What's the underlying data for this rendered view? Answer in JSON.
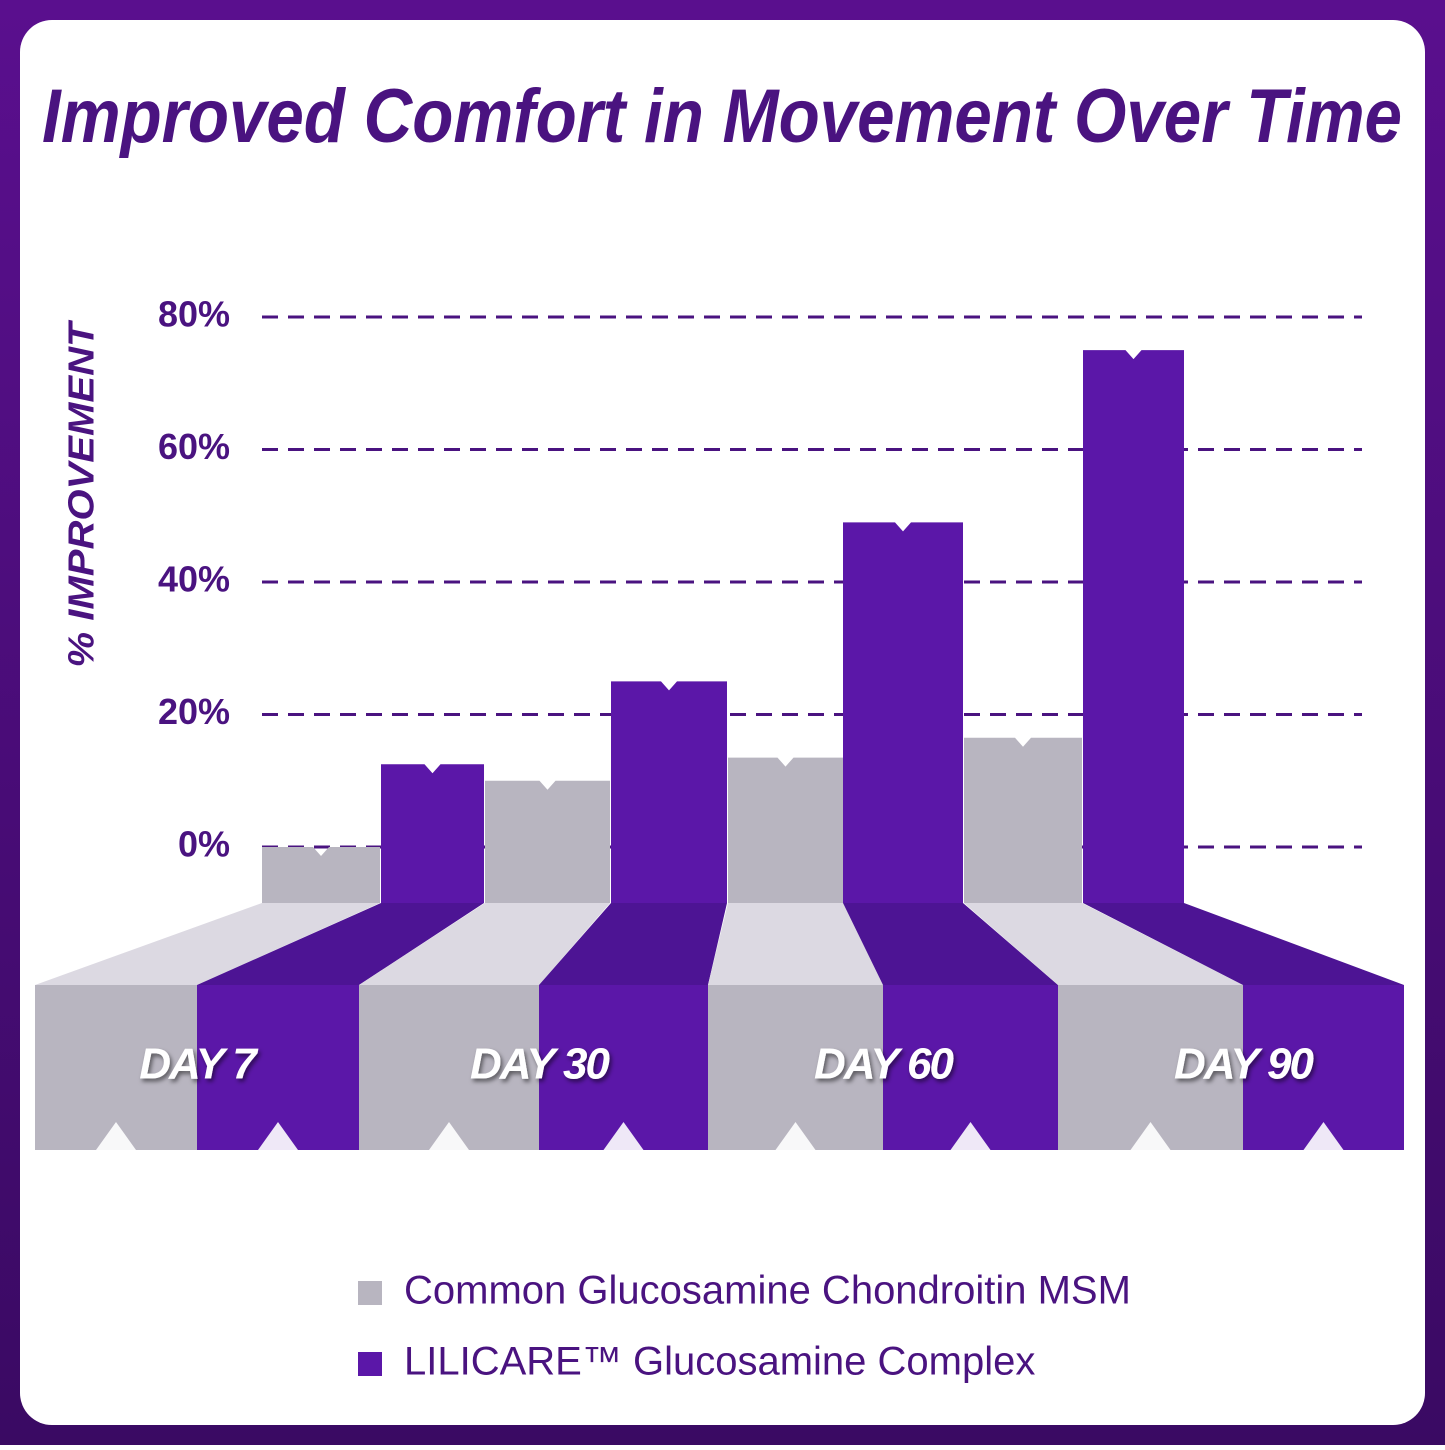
{
  "chart_data": {
    "type": "bar",
    "title": "Improved Comfort in Movement Over Time",
    "y_label": "% IMPROVEMENT",
    "categories": [
      "DAY 7",
      "DAY 30",
      "DAY 60",
      "DAY 90"
    ],
    "series": [
      {
        "name": "Common Glucosamine Chondroitin MSM",
        "color": "#b8b5c0",
        "values": [
          0,
          10,
          13.5,
          16.5
        ]
      },
      {
        "name": "LILICARE™ Glucosamine Complex",
        "color": "#5b17a8",
        "values": [
          12.5,
          25,
          49,
          75
        ]
      }
    ],
    "ylim": [
      0,
      80
    ],
    "yticks": [
      {
        "value": 0,
        "label": "0%"
      },
      {
        "value": 20,
        "label": "20%"
      },
      {
        "value": 40,
        "label": "40%"
      },
      {
        "value": 60,
        "label": "60%"
      },
      {
        "value": 80,
        "label": "80%"
      }
    ],
    "grid": true
  }
}
